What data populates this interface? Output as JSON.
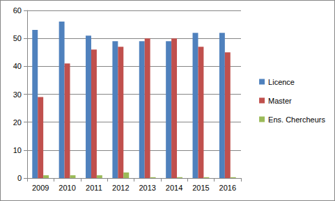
{
  "chart_data": {
    "type": "bar",
    "categories": [
      "2009",
      "2010",
      "2011",
      "2012",
      "2013",
      "2014",
      "2015",
      "2016"
    ],
    "series": [
      {
        "name": "Licence",
        "color": "#4f81bd",
        "values": [
          53,
          56,
          51,
          49,
          49,
          49,
          52,
          52
        ]
      },
      {
        "name": "Master",
        "color": "#c0504d",
        "values": [
          29,
          41,
          46,
          47,
          50,
          50,
          47,
          45
        ]
      },
      {
        "name": "Ens. Chercheurs",
        "color": "#9bbb59",
        "values": [
          1,
          1,
          1,
          2,
          0.3,
          0.3,
          0.3,
          0.3
        ]
      }
    ],
    "ylim": [
      0,
      60
    ],
    "yticks": [
      0,
      10,
      20,
      30,
      40,
      50,
      60
    ],
    "grid": true,
    "legend": "right"
  }
}
